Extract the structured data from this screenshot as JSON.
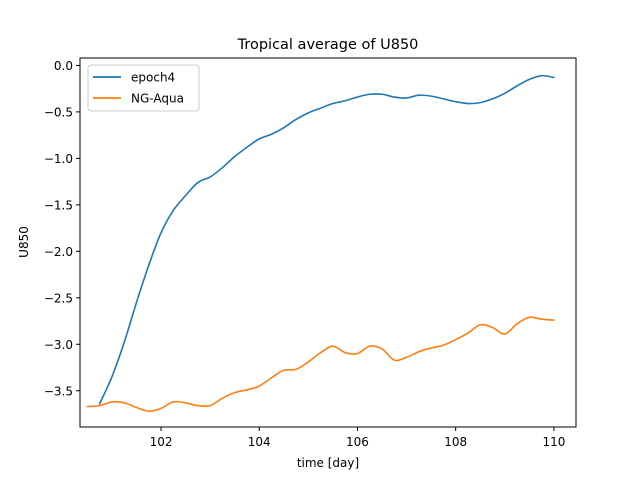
{
  "chart_data": {
    "type": "line",
    "title": "Tropical average of U850",
    "xlabel": "time [day]",
    "ylabel": "U850",
    "xlim": [
      100.35,
      110.45
    ],
    "ylim": [
      -3.89,
      0.08
    ],
    "xticks": [
      102,
      104,
      106,
      108,
      110
    ],
    "xtick_labels": [
      "102",
      "104",
      "106",
      "108",
      "110"
    ],
    "yticks": [
      0.0,
      -0.5,
      -1.0,
      -1.5,
      -2.0,
      -2.5,
      -3.0,
      -3.5
    ],
    "ytick_labels": [
      "0.0",
      "−0.5",
      "−1.0",
      "−1.5",
      "−2.0",
      "−2.5",
      "−3.0",
      "−3.5"
    ],
    "grid": false,
    "legend_position": "top-left",
    "series": [
      {
        "name": "epoch4",
        "color": "#1f77b4",
        "x": [
          100.75,
          101.0,
          101.25,
          101.5,
          101.75,
          102.0,
          102.25,
          102.5,
          102.75,
          103.0,
          103.25,
          103.5,
          103.75,
          104.0,
          104.25,
          104.5,
          104.75,
          105.0,
          105.25,
          105.5,
          105.75,
          106.0,
          106.25,
          106.5,
          106.75,
          107.0,
          107.25,
          107.5,
          107.75,
          108.0,
          108.25,
          108.5,
          108.75,
          109.0,
          109.25,
          109.5,
          109.75,
          110.0
        ],
        "y": [
          -3.64,
          -3.35,
          -2.98,
          -2.55,
          -2.15,
          -1.8,
          -1.56,
          -1.4,
          -1.26,
          -1.2,
          -1.1,
          -0.98,
          -0.88,
          -0.79,
          -0.74,
          -0.67,
          -0.58,
          -0.51,
          -0.46,
          -0.41,
          -0.38,
          -0.34,
          -0.31,
          -0.31,
          -0.34,
          -0.35,
          -0.32,
          -0.33,
          -0.36,
          -0.39,
          -0.41,
          -0.4,
          -0.36,
          -0.3,
          -0.22,
          -0.15,
          -0.11,
          -0.13
        ]
      },
      {
        "name": "NG-Aqua",
        "color": "#ff7f0e",
        "x": [
          100.5,
          100.75,
          101.0,
          101.25,
          101.5,
          101.75,
          102.0,
          102.25,
          102.5,
          102.75,
          103.0,
          103.25,
          103.5,
          103.75,
          104.0,
          104.25,
          104.5,
          104.75,
          105.0,
          105.25,
          105.5,
          105.75,
          106.0,
          106.25,
          106.5,
          106.75,
          107.0,
          107.25,
          107.5,
          107.75,
          108.0,
          108.25,
          108.5,
          108.75,
          109.0,
          109.25,
          109.5,
          109.75,
          110.0
        ],
        "y": [
          -3.67,
          -3.66,
          -3.62,
          -3.63,
          -3.68,
          -3.72,
          -3.69,
          -3.62,
          -3.63,
          -3.66,
          -3.66,
          -3.58,
          -3.52,
          -3.49,
          -3.45,
          -3.36,
          -3.28,
          -3.27,
          -3.19,
          -3.09,
          -3.02,
          -3.09,
          -3.1,
          -3.02,
          -3.05,
          -3.17,
          -3.14,
          -3.08,
          -3.04,
          -3.01,
          -2.95,
          -2.88,
          -2.79,
          -2.82,
          -2.89,
          -2.78,
          -2.71,
          -2.73,
          -2.74
        ]
      }
    ]
  }
}
